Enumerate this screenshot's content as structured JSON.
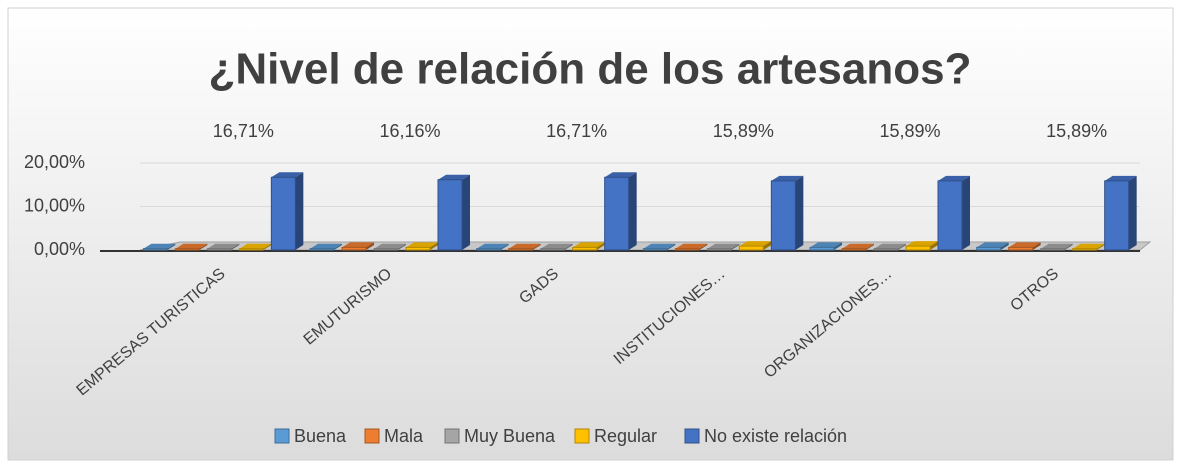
{
  "chart_data": {
    "type": "bar3d",
    "title": "¿Nivel de relación de los artesanos?",
    "categories": [
      "EMPRESAS TURISTICAS",
      "EMUTURISMO",
      "GADS",
      "INSTITUCIONES…",
      "ORGANIZACIONES…",
      "OTROS"
    ],
    "series": [
      {
        "name": "Buena",
        "color": "#5b9bd5",
        "values": [
          0.3,
          0.3,
          0.3,
          0.3,
          0.6,
          0.6
        ]
      },
      {
        "name": "Mala",
        "color": "#ed7d31",
        "values": [
          0.3,
          0.6,
          0.3,
          0.3,
          0.3,
          0.6
        ]
      },
      {
        "name": "Muy Buena",
        "color": "#a5a5a5",
        "values": [
          0.3,
          0.3,
          0.3,
          0.3,
          0.3,
          0.3
        ]
      },
      {
        "name": "Regular",
        "color": "#ffc000",
        "values": [
          0.3,
          0.6,
          0.6,
          0.9,
          0.9,
          0.3
        ]
      },
      {
        "name": "No existe relación",
        "color": "#4472c4",
        "values": [
          16.71,
          16.16,
          16.71,
          15.89,
          15.89,
          15.89
        ],
        "value_labels": [
          "16,71%",
          "16,16%",
          "16,71%",
          "15,89%",
          "15,89%",
          "15,89%"
        ]
      }
    ],
    "ylim": [
      0,
      22
    ],
    "yticks": [
      {
        "value": 0,
        "label": "0,00%"
      },
      {
        "value": 10,
        "label": "10,00%"
      },
      {
        "value": 20,
        "label": "20,00%"
      }
    ],
    "grid": true,
    "legend": "bottom"
  }
}
